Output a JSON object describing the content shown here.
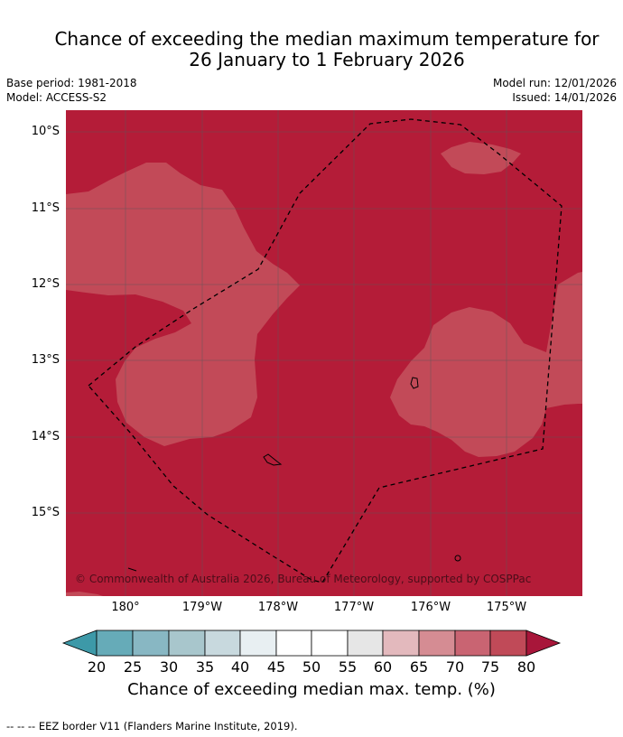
{
  "title": {
    "line1": "Chance of exceeding the median maximum temperature for",
    "line2": "26 January to 1 February 2026"
  },
  "meta": {
    "base_period": "Base period: 1981-2018",
    "model": "Model: ACCESS-S2",
    "model_run": "Model run: 12/01/2026",
    "issued": "Issued: 14/01/2026"
  },
  "map": {
    "latitude_labels": [
      "10°S",
      "11°S",
      "12°S",
      "13°S",
      "14°S",
      "15°S"
    ],
    "longitude_labels": [
      "180°",
      "179°W",
      "178°W",
      "177°W",
      "176°W",
      "175°W"
    ],
    "colors": {
      "category_75_80": "#b41c38",
      "category_70_75": "#c24a58",
      "island_outline": "#000000",
      "eez_border": "#000000"
    },
    "copyright": "© Commonwealth of Australia 2026, Bureau of Meteorology, supported by COSPPac"
  },
  "colorbar": {
    "ticks": [
      "20",
      "25",
      "30",
      "35",
      "40",
      "45",
      "50",
      "55",
      "60",
      "65",
      "70",
      "75",
      "80"
    ],
    "colors": [
      "#3d99a8",
      "#66abb8",
      "#88b7c3",
      "#a8c6cc",
      "#c8d9de",
      "#e8eff2",
      "#ffffff",
      "#ffffff",
      "#e6e6e6",
      "#e3b9bd",
      "#d58c93",
      "#c96472",
      "#c04a58",
      "#a8163a"
    ],
    "title": "Chance of exceeding median max. temp. (%)"
  },
  "footnote": "--  --  -- EEZ border V11 (Flanders Marine Institute, 2019)."
}
